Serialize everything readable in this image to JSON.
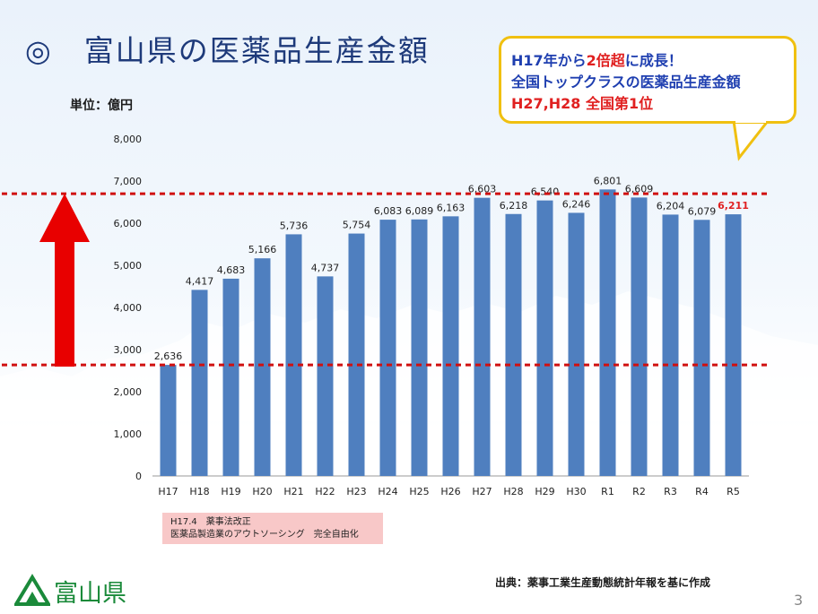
{
  "slide": {
    "title": "◎　富山県の医薬品生産金額",
    "unit_label": "単位：億円",
    "callout": {
      "line1_a": "H17年から",
      "line1_b": "2倍超",
      "line1_c": "に成長！",
      "line2": "全国トップクラスの医薬品生産金額",
      "line3": "H27,H28 全国第1位"
    },
    "note_line1": "H17.4　薬事法改正",
    "note_line2": "医薬品製造業のアウトソーシング　完全自由化",
    "source": "出典：薬事工業生産動態統計年報を基に作成",
    "logo_text": "富山県",
    "page_number": "3",
    "colors": {
      "bar": "#4f7fbf",
      "arrow": "#e80000",
      "dotted_line": "#d01010",
      "highlight_label": "#e02020",
      "callout_border": "#f0c010"
    }
  },
  "chart_data": {
    "type": "bar",
    "categories": [
      "H17",
      "H18",
      "H19",
      "H20",
      "H21",
      "H22",
      "H23",
      "H24",
      "H25",
      "H26",
      "H27",
      "H28",
      "H29",
      "H30",
      "R1",
      "R2",
      "R3",
      "R4",
      "R5"
    ],
    "values": [
      2636,
      4417,
      4683,
      5166,
      5736,
      4737,
      5754,
      6083,
      6089,
      6163,
      6603,
      6218,
      6540,
      6246,
      6801,
      6609,
      6204,
      6079,
      6211
    ],
    "value_labels": [
      "2,636",
      "4,417",
      "4,683",
      "5,166",
      "5,736",
      "4,737",
      "5,754",
      "6,083",
      "6,089",
      "6,163",
      "6,603",
      "6,218",
      "6,540",
      "6,246",
      "6,801",
      "6,609",
      "6,204",
      "6,079",
      "6,211"
    ],
    "highlight_index": 18,
    "ylim": [
      0,
      8000
    ],
    "yticks": [
      0,
      1000,
      2000,
      3000,
      4000,
      5000,
      6000,
      7000,
      8000
    ],
    "ytick_labels": [
      "0",
      "1,000",
      "2,000",
      "3,000",
      "4,000",
      "5,000",
      "6,000",
      "7,000",
      "8,000"
    ],
    "grid": false,
    "reference_lines": [
      2636,
      6700
    ],
    "xlabel": "",
    "ylabel": "単位：億円"
  }
}
